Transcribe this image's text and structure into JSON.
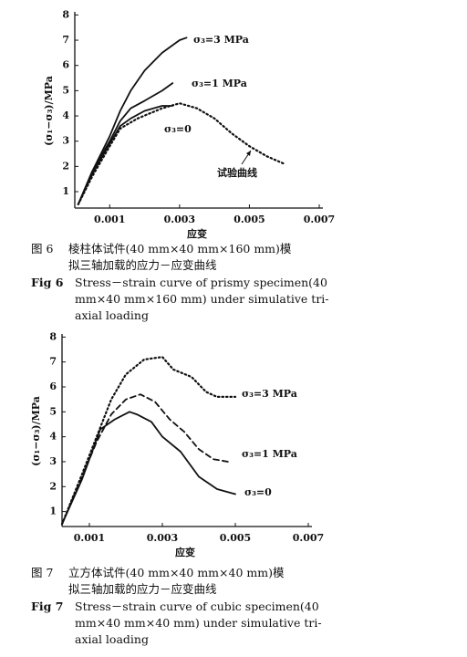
{
  "chart_data": [
    {
      "type": "line",
      "title": null,
      "xlabel": "应变",
      "ylabel": "(σ₁−σ₃)/MPa",
      "xlim": [
        0,
        0.007
      ],
      "ylim": [
        0.35,
        8.05
      ],
      "xticks": [
        0.001,
        0.003,
        0.005,
        0.007
      ],
      "yticks": [
        1,
        2,
        3,
        4,
        5,
        6,
        7,
        8
      ],
      "series": [
        {
          "name": "σ₃=3 MPa",
          "color": "#111111",
          "style": "solid",
          "x": [
            0.0001,
            0.0005,
            0.001,
            0.0013,
            0.0016,
            0.002,
            0.0025,
            0.003,
            0.0032
          ],
          "values": [
            0.5,
            1.8,
            3.2,
            4.2,
            5.0,
            5.8,
            6.5,
            7.0,
            7.1
          ]
        },
        {
          "name": "σ₃=1 MPa",
          "color": "#111111",
          "style": "solid",
          "x": [
            0.0001,
            0.0005,
            0.001,
            0.0013,
            0.0016,
            0.002,
            0.0025,
            0.0028
          ],
          "values": [
            0.5,
            1.8,
            3.0,
            3.8,
            4.3,
            4.6,
            5.0,
            5.3
          ]
        },
        {
          "name": "σ₃=0",
          "color": "#111111",
          "style": "solid",
          "x": [
            0.0001,
            0.0005,
            0.001,
            0.0013,
            0.0016,
            0.002,
            0.0025,
            0.0028
          ],
          "values": [
            0.5,
            1.7,
            2.9,
            3.6,
            3.9,
            4.2,
            4.4,
            4.4
          ]
        },
        {
          "name": "试验曲线",
          "color": "#111111",
          "style": "dotted",
          "x": [
            0.0001,
            0.0005,
            0.001,
            0.0013,
            0.0018,
            0.0025,
            0.003,
            0.0035,
            0.004,
            0.0045,
            0.005,
            0.0055,
            0.006
          ],
          "values": [
            0.5,
            1.6,
            2.8,
            3.5,
            3.9,
            4.3,
            4.5,
            4.3,
            3.9,
            3.3,
            2.8,
            2.4,
            2.1
          ]
        }
      ]
    },
    {
      "type": "line",
      "title": null,
      "xlabel": "应变",
      "ylabel": "(σ₁−σ₃)/MPa",
      "xlim": [
        0.00025,
        0.007
      ],
      "ylim": [
        0.4,
        8.05
      ],
      "xticks": [
        0.001,
        0.003,
        0.005,
        0.007
      ],
      "yticks": [
        1,
        2,
        3,
        4,
        5,
        6,
        7,
        8
      ],
      "series": [
        {
          "name": "σ₃=3 MPa",
          "color": "#111111",
          "style": "dotted",
          "x": [
            0.00025,
            0.0008,
            0.0012,
            0.0016,
            0.002,
            0.0025,
            0.003,
            0.0033,
            0.0038,
            0.0042,
            0.0045,
            0.005
          ],
          "values": [
            0.5,
            2.5,
            4.0,
            5.5,
            6.5,
            7.1,
            7.2,
            6.7,
            6.4,
            5.8,
            5.6,
            5.6
          ]
        },
        {
          "name": "σ₃=1 MPa",
          "color": "#111111",
          "style": "dashed",
          "x": [
            0.00025,
            0.0008,
            0.0012,
            0.0016,
            0.002,
            0.0024,
            0.0028,
            0.0032,
            0.0036,
            0.004,
            0.0044,
            0.0048
          ],
          "values": [
            0.5,
            2.4,
            3.8,
            4.9,
            5.5,
            5.7,
            5.4,
            4.7,
            4.2,
            3.5,
            3.1,
            3.0
          ]
        },
        {
          "name": "σ₃=0",
          "color": "#111111",
          "style": "solid",
          "x": [
            0.00025,
            0.0008,
            0.0013,
            0.0017,
            0.0021,
            0.0023,
            0.0027,
            0.003,
            0.0035,
            0.004,
            0.0045,
            0.005
          ],
          "values": [
            0.5,
            2.3,
            4.3,
            4.7,
            5.0,
            4.9,
            4.6,
            4.0,
            3.4,
            2.4,
            1.9,
            1.7
          ]
        }
      ]
    }
  ],
  "captions": [
    {
      "cn_label": "图 6",
      "cn": [
        "棱柱体试件(40 mm×40 mm×160 mm)模",
        "拟三轴加载的应力－应变曲线"
      ],
      "en_label": "Fig 6",
      "en": [
        "Stress－strain curve of prismy specimen(40",
        "mm×40 mm×160 mm) under simulative tri-",
        "axial loading"
      ]
    },
    {
      "cn_label": "图 7",
      "cn": [
        "立方体试件(40 mm×40 mm×40 mm)模",
        "拟三轴加载的应力－应变曲线"
      ],
      "en_label": "Fig 7",
      "en": [
        "Stress－strain curve of cubic specimen(40",
        "mm×40 mm×40 mm) under simulative tri-",
        "axial loading"
      ]
    }
  ]
}
